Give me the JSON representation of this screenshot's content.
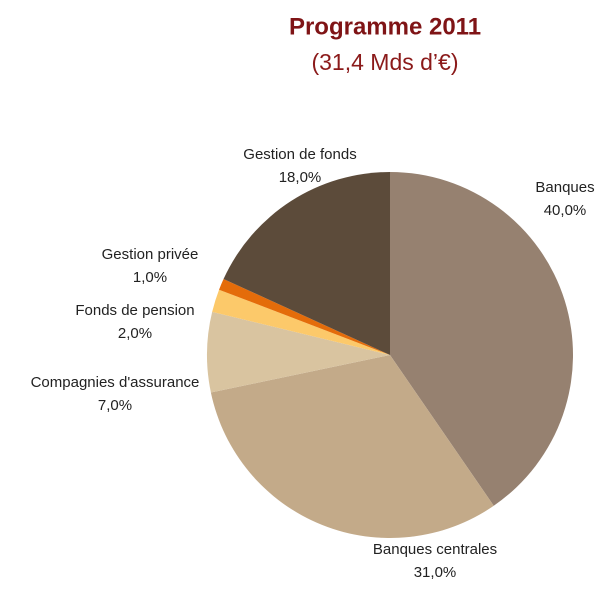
{
  "chart_data": {
    "type": "pie",
    "title": "Programme 2011",
    "subtitle": "(31,4 Mds d’€)",
    "categories": [
      "Banques",
      "Banques centrales",
      "Compagnies d'assurance",
      "Fonds de pension",
      "Gestion privée",
      "Gestion de fonds"
    ],
    "values": [
      40,
      31,
      7,
      2,
      1,
      18
    ],
    "value_labels": [
      "40,0%",
      "31,0%",
      "7,0%",
      "2,0%",
      "1,0%",
      "18,0%"
    ],
    "colors": [
      "#968170",
      "#c3aa89",
      "#d9c4a0",
      "#fcc96a",
      "#e46c0a",
      "#5c4b3a"
    ]
  }
}
